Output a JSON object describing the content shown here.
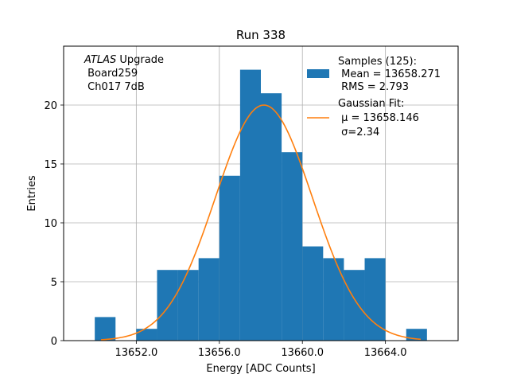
{
  "chart_data": {
    "type": "bar",
    "title": "Run 338",
    "xlabel": "Energy [ADC Counts]",
    "ylabel": "Entries",
    "xlim": [
      1648.5,
      1667.5
    ],
    "xlim_offset": 12000,
    "ylim": [
      0,
      25
    ],
    "grid": true,
    "x_ticks": [
      13652.0,
      13656.0,
      13660.0,
      13664.0
    ],
    "x_tick_labels": [
      "13652.0",
      "13656.0",
      "13660.0",
      "13664.0"
    ],
    "y_ticks": [
      0,
      5,
      10,
      15,
      20
    ],
    "y_tick_labels": [
      "0",
      "5",
      "10",
      "15",
      "20"
    ],
    "bin_width": 1,
    "bins": [
      {
        "left": 13650,
        "count": 2
      },
      {
        "left": 13651,
        "count": 0
      },
      {
        "left": 13652,
        "count": 1
      },
      {
        "left": 13653,
        "count": 6
      },
      {
        "left": 13654,
        "count": 6
      },
      {
        "left": 13655,
        "count": 7
      },
      {
        "left": 13656,
        "count": 14
      },
      {
        "left": 13657,
        "count": 23
      },
      {
        "left": 13658,
        "count": 21
      },
      {
        "left": 13659,
        "count": 16
      },
      {
        "left": 13660,
        "count": 8
      },
      {
        "left": 13661,
        "count": 7
      },
      {
        "left": 13662,
        "count": 6
      },
      {
        "left": 13663,
        "count": 7
      },
      {
        "left": 13664,
        "count": 0
      },
      {
        "left": 13665,
        "count": 1
      }
    ],
    "fit": {
      "type": "gaussian",
      "mu": 13658.146,
      "sigma": 2.34,
      "amplitude": 20.0,
      "x_range": [
        13650.3,
        13665.7
      ]
    },
    "annotation": [
      "ATLAS Upgrade",
      " Board259",
      " Ch017 7dB"
    ],
    "annotation_italic": "ATLAS",
    "legend_position": "top-right",
    "legend": {
      "samples": {
        "title": "Samples (125):",
        "line1": " Mean = 13658.271",
        "line2": " RMS = 2.793"
      },
      "fit": {
        "title": "Gaussian Fit:",
        "line1": " μ = 13658.146",
        "line2": " σ=2.34"
      }
    },
    "colors": {
      "bars": "#1f77b4",
      "fit": "#ff7f0e",
      "grid": "#b0b0b0"
    }
  }
}
